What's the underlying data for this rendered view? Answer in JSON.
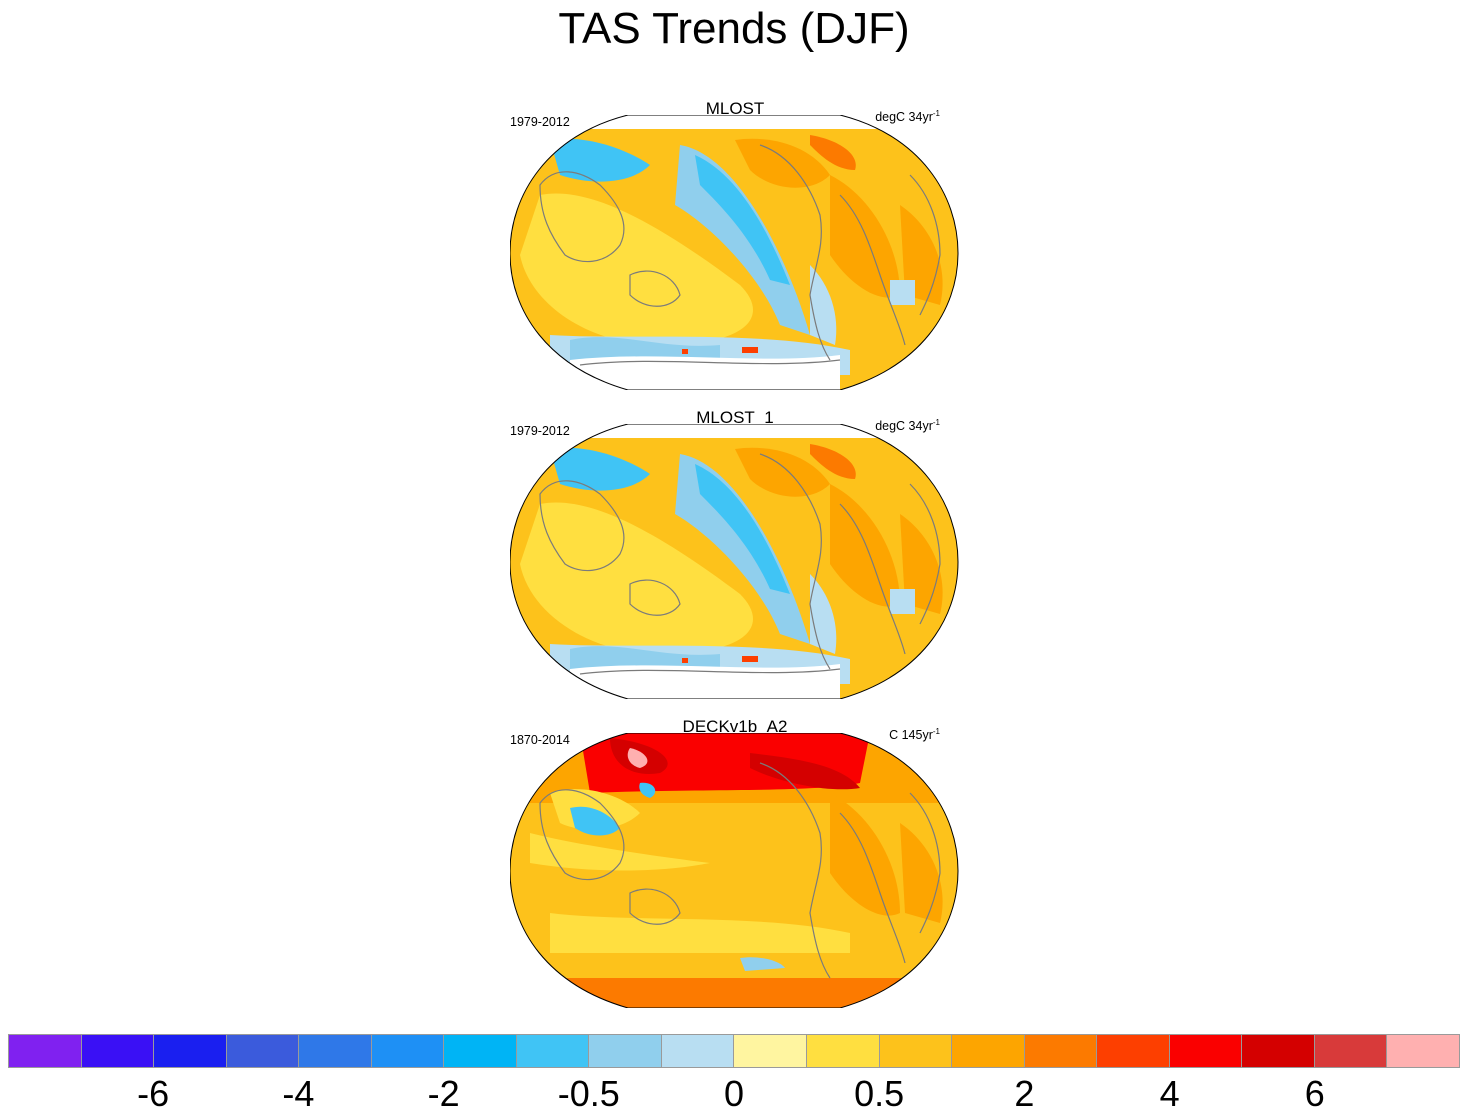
{
  "title": "TAS Trends (DJF)",
  "panels": [
    {
      "name": "MLOST",
      "period": "1979-2012",
      "units_prefix": "degC 34yr",
      "units_exp": "-1"
    },
    {
      "name": "MLOST_1",
      "period": "1979-2012",
      "units_prefix": "degC 34yr",
      "units_exp": "-1"
    },
    {
      "name": "DECKv1b_A2",
      "period": "1870-2014",
      "units_prefix": "C 145yr",
      "units_exp": "-1"
    }
  ],
  "colorbar": {
    "colors": [
      "#8021f0",
      "#3a10f5",
      "#1a1ff0",
      "#3b5bdc",
      "#2f78e8",
      "#1e90f5",
      "#00b4f5",
      "#40c4f5",
      "#90cfed",
      "#b8def2",
      "#fff5a0",
      "#ffdf40",
      "#fdc21b",
      "#fda500",
      "#fc7a00",
      "#fd3f00",
      "#fa0000",
      "#d40000",
      "#d83a3a",
      "#ffb0b0"
    ],
    "labels": [
      "-6",
      "-4",
      "-2",
      "-0.5",
      "0",
      "0.5",
      "2",
      "4",
      "6"
    ],
    "label_after_boundary": [
      2,
      4,
      6,
      8,
      10,
      12,
      14,
      16,
      18
    ]
  }
}
